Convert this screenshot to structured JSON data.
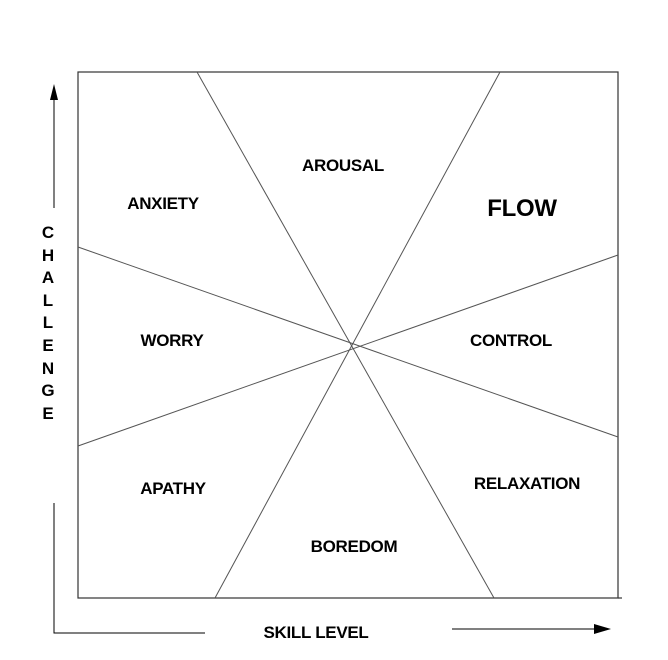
{
  "axes": {
    "y_label": "CHALLENGE",
    "x_label": "SKILL LEVEL"
  },
  "regions": {
    "arousal": "AROUSAL",
    "flow": "FLOW",
    "anxiety": "ANXIETY",
    "worry": "WORRY",
    "control": "CONTROL",
    "apathy": "APATHY",
    "relaxation": "RELAXATION",
    "boredom": "BOREDOM"
  },
  "colors": {
    "line": "#555555",
    "text": "#000000"
  }
}
